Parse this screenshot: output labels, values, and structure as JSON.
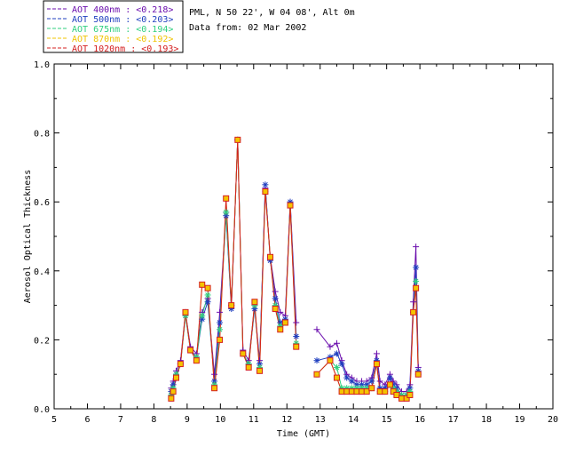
{
  "chart_data": {
    "type": "line",
    "title": "PML, N 50 22', W 04 08', Alt 0m",
    "subtitle": "Data from: 02 Mar 2002",
    "xlabel": "Time (GMT)",
    "ylabel": "Aerosol Optical Thickness",
    "xlim": [
      5,
      20
    ],
    "ylim": [
      0.0,
      1.0
    ],
    "x_ticks": [
      "5",
      "6",
      "7",
      "8",
      "9",
      "10",
      "11",
      "12",
      "13",
      "14",
      "15",
      "16",
      "17",
      "18",
      "19",
      "20"
    ],
    "y_ticks": [
      "0.0",
      "0.2",
      "0.4",
      "0.6",
      "0.8",
      "1.0"
    ],
    "legend_position": "top-left",
    "x": [
      8.52,
      8.58,
      8.67,
      8.8,
      8.95,
      9.1,
      9.28,
      9.45,
      9.62,
      9.82,
      9.98,
      10.17,
      10.33,
      10.52,
      10.68,
      10.85,
      11.03,
      11.18,
      11.35,
      11.5,
      11.65,
      11.8,
      11.95,
      12.1,
      12.28,
      12.9,
      13.3,
      13.5,
      13.65,
      13.8,
      13.95,
      14.1,
      14.25,
      14.4,
      14.55,
      14.7,
      14.8,
      14.95,
      15.1,
      15.2,
      15.3,
      15.45,
      15.6,
      15.7,
      15.8,
      15.88,
      15.95
    ],
    "series": [
      {
        "name": "AOT  400nm : <0.218>",
        "color": "#6a0dad",
        "values": [
          0.06,
          0.08,
          0.11,
          0.14,
          0.28,
          0.18,
          0.16,
          0.28,
          0.32,
          0.1,
          0.28,
          0.57,
          0.3,
          0.78,
          0.17,
          0.14,
          0.3,
          0.14,
          0.64,
          0.44,
          0.34,
          0.28,
          0.27,
          0.6,
          0.25,
          0.23,
          0.18,
          0.19,
          0.14,
          0.1,
          0.09,
          0.08,
          0.08,
          0.08,
          0.09,
          0.16,
          0.08,
          0.07,
          0.1,
          0.08,
          0.07,
          0.05,
          0.05,
          0.07,
          0.31,
          0.47,
          0.12
        ]
      },
      {
        "name": "AOT  500nm : <0.203>",
        "color": "#1f3fbf",
        "values": [
          0.05,
          0.07,
          0.1,
          0.13,
          0.27,
          0.17,
          0.15,
          0.26,
          0.31,
          0.08,
          0.25,
          0.56,
          0.29,
          0.78,
          0.16,
          0.13,
          0.29,
          0.13,
          0.65,
          0.43,
          0.32,
          0.25,
          0.26,
          0.6,
          0.21,
          0.14,
          0.15,
          0.16,
          0.13,
          0.09,
          0.08,
          0.07,
          0.07,
          0.07,
          0.08,
          0.14,
          0.06,
          0.06,
          0.09,
          0.07,
          0.06,
          0.04,
          0.04,
          0.06,
          0.28,
          0.41,
          0.11
        ]
      },
      {
        "name": "AOT  675nm : <0.194>",
        "color": "#2fcf7f",
        "values": [
          0.04,
          0.06,
          0.1,
          0.13,
          0.27,
          0.17,
          0.15,
          0.27,
          0.33,
          0.07,
          0.23,
          0.57,
          0.3,
          0.78,
          0.16,
          0.13,
          0.3,
          0.12,
          0.63,
          0.44,
          0.3,
          0.24,
          0.25,
          0.59,
          0.19,
          0.1,
          0.14,
          0.12,
          0.06,
          0.06,
          0.06,
          0.06,
          0.06,
          0.06,
          0.06,
          0.13,
          0.05,
          0.05,
          0.07,
          0.06,
          0.05,
          0.04,
          0.04,
          0.05,
          0.28,
          0.37,
          0.1
        ]
      },
      {
        "name": "AOT  870nm : <0.192>",
        "color": "#f0c400",
        "values": [
          0.03,
          0.05,
          0.09,
          0.13,
          0.28,
          0.17,
          0.14,
          0.36,
          0.35,
          0.06,
          0.2,
          0.61,
          0.3,
          0.78,
          0.16,
          0.12,
          0.31,
          0.11,
          0.63,
          0.44,
          0.29,
          0.23,
          0.25,
          0.59,
          0.18,
          0.1,
          0.14,
          0.09,
          0.05,
          0.05,
          0.05,
          0.05,
          0.05,
          0.05,
          0.06,
          0.13,
          0.05,
          0.05,
          0.07,
          0.05,
          0.04,
          0.03,
          0.03,
          0.04,
          0.28,
          0.35,
          0.1
        ]
      },
      {
        "name": "AOT 1020nm : <0.193>",
        "color": "#d42020",
        "values": [
          0.03,
          0.05,
          0.09,
          0.13,
          0.28,
          0.17,
          0.14,
          0.36,
          0.35,
          0.06,
          0.2,
          0.61,
          0.3,
          0.78,
          0.16,
          0.12,
          0.31,
          0.11,
          0.63,
          0.44,
          0.29,
          0.23,
          0.25,
          0.59,
          0.18,
          0.1,
          0.14,
          0.09,
          0.05,
          0.05,
          0.05,
          0.05,
          0.05,
          0.05,
          0.06,
          0.13,
          0.05,
          0.05,
          0.07,
          0.05,
          0.04,
          0.03,
          0.03,
          0.04,
          0.28,
          0.35,
          0.1
        ]
      }
    ]
  }
}
